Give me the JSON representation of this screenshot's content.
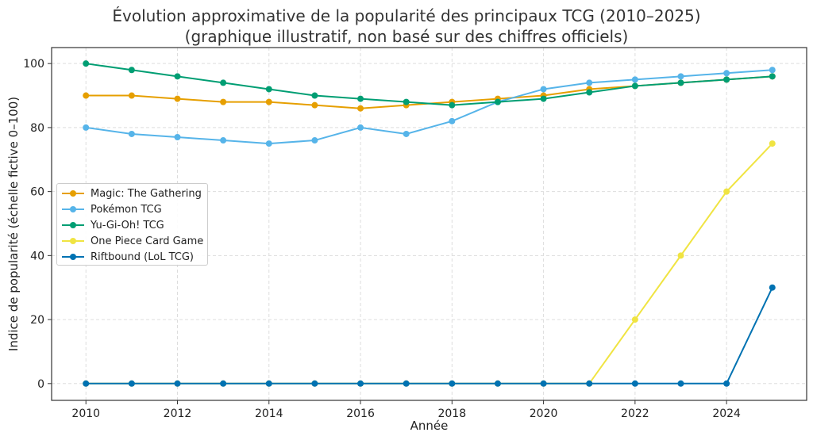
{
  "chart_data": {
    "type": "line",
    "title": "Évolution approximative de la popularité des principaux TCG (2010–2025)",
    "subtitle": "(graphique illustratif, non basé sur des chiffres officiels)",
    "xlabel": "Année",
    "ylabel": "Indice de popularité (échelle fictive 0–100)",
    "xlim": [
      2009.25,
      2025.75
    ],
    "ylim": [
      -5.25,
      105
    ],
    "xticks": [
      2010,
      2012,
      2014,
      2016,
      2018,
      2020,
      2022,
      2024
    ],
    "yticks": [
      0,
      20,
      40,
      60,
      80,
      100
    ],
    "grid": true,
    "legend_position": "center-left",
    "x": [
      2010,
      2011,
      2012,
      2013,
      2014,
      2015,
      2016,
      2017,
      2018,
      2019,
      2020,
      2021,
      2022,
      2023,
      2024,
      2025
    ],
    "series": [
      {
        "name": "Magic: The Gathering",
        "color": "#E69F00",
        "values": [
          90,
          90,
          89,
          88,
          88,
          87,
          86,
          87,
          88,
          89,
          90,
          92,
          93,
          94,
          95,
          96
        ]
      },
      {
        "name": "Pokémon TCG",
        "color": "#56B4E9",
        "values": [
          80,
          78,
          77,
          76,
          75,
          76,
          80,
          78,
          82,
          88,
          92,
          94,
          95,
          96,
          97,
          98
        ]
      },
      {
        "name": "Yu-Gi-Oh! TCG",
        "color": "#009E73",
        "values": [
          100,
          98,
          96,
          94,
          92,
          90,
          89,
          88,
          87,
          88,
          89,
          91,
          93,
          94,
          95,
          96
        ]
      },
      {
        "name": "One Piece Card Game",
        "color": "#F0E442",
        "values": [
          0,
          0,
          0,
          0,
          0,
          0,
          0,
          0,
          0,
          0,
          0,
          0,
          20,
          40,
          60,
          75
        ]
      },
      {
        "name": "Riftbound (LoL TCG)",
        "color": "#0072B2",
        "values": [
          0,
          0,
          0,
          0,
          0,
          0,
          0,
          0,
          0,
          0,
          0,
          0,
          0,
          0,
          0,
          30
        ]
      }
    ]
  }
}
